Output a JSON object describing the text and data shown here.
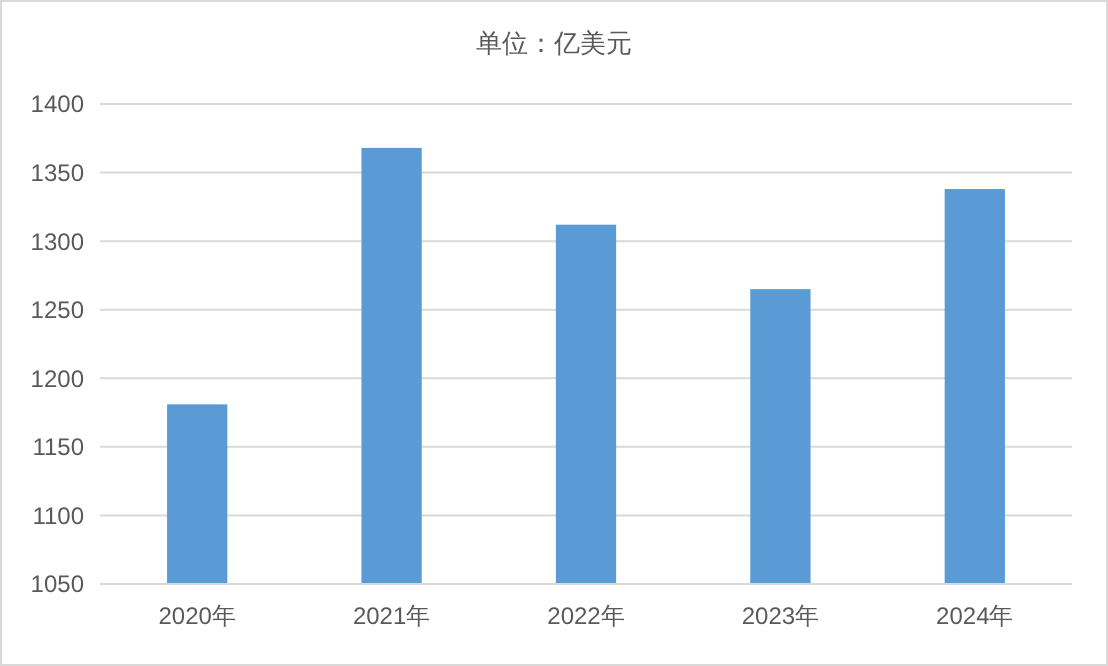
{
  "chart_data": {
    "type": "bar",
    "title": "单位：亿美元",
    "categories": [
      "2020年",
      "2021年",
      "2022年",
      "2023年",
      "2024年"
    ],
    "values": [
      1181,
      1368,
      1312,
      1265,
      1338
    ],
    "color": "#5b9bd5",
    "ylim": [
      1050,
      1400
    ],
    "yticks": [
      1050,
      1100,
      1150,
      1200,
      1250,
      1300,
      1350,
      1400
    ],
    "grid": "y"
  }
}
